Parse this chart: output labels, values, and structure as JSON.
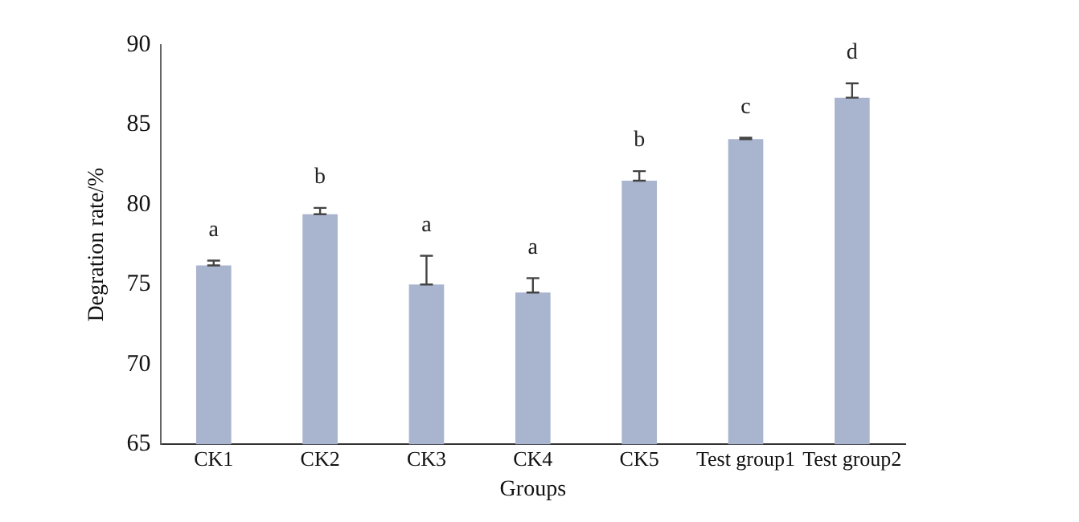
{
  "chart_data": {
    "type": "bar",
    "xlabel": "Groups",
    "ylabel": "Degration rate/%",
    "categories": [
      "CK1",
      "CK2",
      "CK3",
      "CK4",
      "CK5",
      "Test group1",
      "Test group2"
    ],
    "values": [
      76.2,
      79.4,
      75.0,
      74.5,
      81.5,
      84.1,
      86.7
    ],
    "errors": [
      [
        76.2,
        76.5
      ],
      [
        79.4,
        79.8
      ],
      [
        75.0,
        76.8
      ],
      [
        74.5,
        75.4
      ],
      [
        81.5,
        82.1
      ],
      [
        84.1,
        84.2
      ],
      [
        86.7,
        87.6
      ]
    ],
    "color": "#a9b5cf",
    "ylim": [
      65,
      90
    ],
    "yticks": [
      65,
      70,
      75,
      80,
      85,
      90
    ],
    "grid": false,
    "legend": false,
    "annotations": [
      {
        "text": "a",
        "x": "CK1",
        "y": 76.5
      },
      {
        "text": "b",
        "x": "CK2",
        "y": 79.8
      },
      {
        "text": "a",
        "x": "CK3",
        "y": 76.8
      },
      {
        "text": "a",
        "x": "CK4",
        "y": 75.4
      },
      {
        "text": "b",
        "x": "CK5",
        "y": 82.1
      },
      {
        "text": "c",
        "x": "Test group1",
        "y": 84.2
      },
      {
        "text": "d",
        "x": "Test group2",
        "y": 87.6
      }
    ]
  }
}
